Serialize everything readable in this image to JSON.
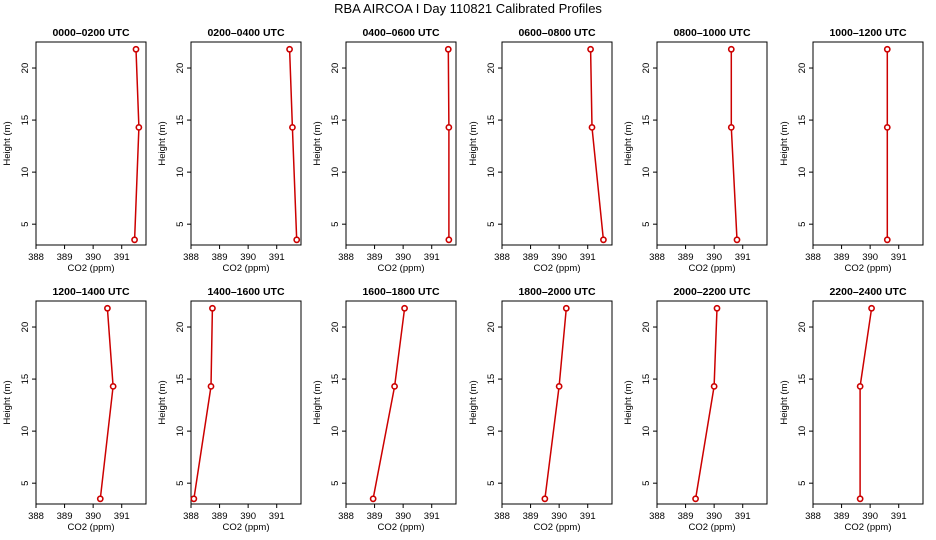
{
  "figure": {
    "title": "RBA AIRCOA I  Day 110821  Calibrated Profiles"
  },
  "colors": {
    "profile": "#cc0000",
    "axis": "#000000",
    "background": "#ffffff"
  },
  "chart_data": [
    {
      "type": "line",
      "title": "0000–0200 UTC",
      "xlabel": "CO2 (ppm)",
      "ylabel": "Height (m)",
      "xlim": [
        388,
        391.85
      ],
      "ylim": [
        3,
        22.5
      ],
      "xticks": [
        388,
        389,
        390,
        391
      ],
      "yticks": [
        5,
        10,
        15,
        20
      ],
      "grid": false,
      "series": [
        {
          "x": [
            391.45,
            391.6,
            391.5
          ],
          "y": [
            3.5,
            14.3,
            21.8
          ]
        }
      ]
    },
    {
      "type": "line",
      "title": "0200–0400 UTC",
      "xlabel": "CO2 (ppm)",
      "ylabel": "Height (m)",
      "xlim": [
        388,
        391.85
      ],
      "ylim": [
        3,
        22.5
      ],
      "xticks": [
        388,
        389,
        390,
        391
      ],
      "yticks": [
        5,
        10,
        15,
        20
      ],
      "grid": false,
      "series": [
        {
          "x": [
            391.7,
            391.55,
            391.45
          ],
          "y": [
            3.5,
            14.3,
            21.8
          ]
        }
      ]
    },
    {
      "type": "line",
      "title": "0400–0600 UTC",
      "xlabel": "CO2 (ppm)",
      "ylabel": "Height (m)",
      "xlim": [
        388,
        391.85
      ],
      "ylim": [
        3,
        22.5
      ],
      "xticks": [
        388,
        389,
        390,
        391
      ],
      "yticks": [
        5,
        10,
        15,
        20
      ],
      "grid": false,
      "series": [
        {
          "x": [
            391.6,
            391.6,
            391.58
          ],
          "y": [
            3.5,
            14.3,
            21.8
          ]
        }
      ]
    },
    {
      "type": "line",
      "title": "0600–0800 UTC",
      "xlabel": "CO2 (ppm)",
      "ylabel": "Height (m)",
      "xlim": [
        388,
        391.85
      ],
      "ylim": [
        3,
        22.5
      ],
      "xticks": [
        388,
        389,
        390,
        391
      ],
      "yticks": [
        5,
        10,
        15,
        20
      ],
      "grid": false,
      "series": [
        {
          "x": [
            391.55,
            391.15,
            391.1
          ],
          "y": [
            3.5,
            14.3,
            21.8
          ]
        }
      ]
    },
    {
      "type": "line",
      "title": "0800–1000 UTC",
      "xlabel": "CO2 (ppm)",
      "ylabel": "Height (m)",
      "xlim": [
        388,
        391.85
      ],
      "ylim": [
        3,
        22.5
      ],
      "xticks": [
        388,
        389,
        390,
        391
      ],
      "yticks": [
        5,
        10,
        15,
        20
      ],
      "grid": false,
      "series": [
        {
          "x": [
            390.8,
            390.6,
            390.6
          ],
          "y": [
            3.5,
            14.3,
            21.8
          ]
        }
      ]
    },
    {
      "type": "line",
      "title": "1000–1200 UTC",
      "xlabel": "CO2 (ppm)",
      "ylabel": "Height (m)",
      "xlim": [
        388,
        391.85
      ],
      "ylim": [
        3,
        22.5
      ],
      "xticks": [
        388,
        389,
        390,
        391
      ],
      "yticks": [
        5,
        10,
        15,
        20
      ],
      "grid": false,
      "series": [
        {
          "x": [
            390.6,
            390.6,
            390.6
          ],
          "y": [
            3.5,
            14.3,
            21.8
          ]
        }
      ]
    },
    {
      "type": "line",
      "title": "1200–1400 UTC",
      "xlabel": "CO2 (ppm)",
      "ylabel": "Height (m)",
      "xlim": [
        388,
        391.85
      ],
      "ylim": [
        3,
        22.5
      ],
      "xticks": [
        388,
        389,
        390,
        391
      ],
      "yticks": [
        5,
        10,
        15,
        20
      ],
      "grid": false,
      "series": [
        {
          "x": [
            390.25,
            390.7,
            390.5
          ],
          "y": [
            3.5,
            14.3,
            21.8
          ]
        }
      ]
    },
    {
      "type": "line",
      "title": "1400–1600 UTC",
      "xlabel": "CO2 (ppm)",
      "ylabel": "Height (m)",
      "xlim": [
        388,
        391.85
      ],
      "ylim": [
        3,
        22.5
      ],
      "xticks": [
        388,
        389,
        390,
        391
      ],
      "yticks": [
        5,
        10,
        15,
        20
      ],
      "grid": false,
      "series": [
        {
          "x": [
            388.1,
            388.7,
            388.75
          ],
          "y": [
            3.5,
            14.3,
            21.8
          ]
        }
      ]
    },
    {
      "type": "line",
      "title": "1600–1800 UTC",
      "xlabel": "CO2 (ppm)",
      "ylabel": "Height (m)",
      "xlim": [
        388,
        391.85
      ],
      "ylim": [
        3,
        22.5
      ],
      "xticks": [
        388,
        389,
        390,
        391
      ],
      "yticks": [
        5,
        10,
        15,
        20
      ],
      "grid": false,
      "series": [
        {
          "x": [
            388.95,
            389.7,
            390.05
          ],
          "y": [
            3.5,
            14.3,
            21.8
          ]
        }
      ]
    },
    {
      "type": "line",
      "title": "1800–2000 UTC",
      "xlabel": "CO2 (ppm)",
      "ylabel": "Height (m)",
      "xlim": [
        388,
        391.85
      ],
      "ylim": [
        3,
        22.5
      ],
      "xticks": [
        388,
        389,
        390,
        391
      ],
      "yticks": [
        5,
        10,
        15,
        20
      ],
      "grid": false,
      "series": [
        {
          "x": [
            389.5,
            390.0,
            390.25
          ],
          "y": [
            3.5,
            14.3,
            21.8
          ]
        }
      ]
    },
    {
      "type": "line",
      "title": "2000–2200 UTC",
      "xlabel": "CO2 (ppm)",
      "ylabel": "Height (m)",
      "xlim": [
        388,
        391.85
      ],
      "ylim": [
        3,
        22.5
      ],
      "xticks": [
        388,
        389,
        390,
        391
      ],
      "yticks": [
        5,
        10,
        15,
        20
      ],
      "grid": false,
      "series": [
        {
          "x": [
            389.35,
            390.0,
            390.1
          ],
          "y": [
            3.5,
            14.3,
            21.8
          ]
        }
      ]
    },
    {
      "type": "line",
      "title": "2200–2400 UTC",
      "xlabel": "CO2 (ppm)",
      "ylabel": "Height (m)",
      "xlim": [
        388,
        391.85
      ],
      "ylim": [
        3,
        22.5
      ],
      "xticks": [
        388,
        389,
        390,
        391
      ],
      "yticks": [
        5,
        10,
        15,
        20
      ],
      "grid": false,
      "series": [
        {
          "x": [
            389.65,
            389.65,
            390.05
          ],
          "y": [
            3.5,
            14.3,
            21.8
          ]
        }
      ]
    }
  ]
}
